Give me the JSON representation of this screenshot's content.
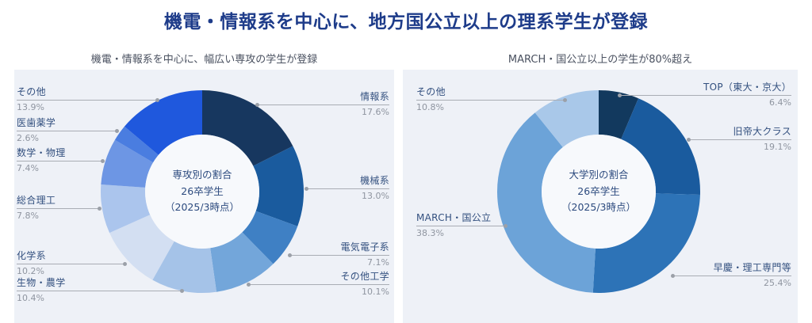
{
  "title": "機電・情報系を中心に、地方国公立以上の理系学生が登録",
  "theme": {
    "title_color": "#1e3c8a",
    "panel_background": "#eef1f7",
    "label_text_color": "#33507f",
    "percent_text_color": "#8f95a0",
    "leader_line_color": "#a9adb4",
    "donut_hole_color": "#f7f9fc"
  },
  "chart_data": [
    {
      "id": "majors",
      "type": "pie",
      "subtype": "donut",
      "title": "機電・情報系を中心に、幅広い専攻の学生が登録",
      "center_lines": [
        "専攻別の割合",
        "26卒学生",
        "（2025/3時点）"
      ],
      "unit": "%",
      "start_angle": "top",
      "direction": "clockwise",
      "legend": "callout-labels",
      "labels": [
        "情報系",
        "機械系",
        "電気電子系",
        "その他工学",
        "生物・農学",
        "化学系",
        "総合理工",
        "数学・物理",
        "医歯薬学",
        "その他"
      ],
      "values": [
        17.6,
        13.0,
        7.1,
        10.1,
        10.4,
        10.2,
        7.8,
        7.4,
        2.6,
        13.9
      ],
      "colors": [
        "#17375f",
        "#1a5b9e",
        "#3f80c4",
        "#73a6da",
        "#a5c3e8",
        "#d3dff2",
        "#abc5ed",
        "#6d96e4",
        "#4a7de0",
        "#1f58dd"
      ]
    },
    {
      "id": "universities",
      "type": "pie",
      "subtype": "donut",
      "title": "MARCH・国公立以上の学生が80%超え",
      "center_lines": [
        "大学別の割合",
        "26卒学生",
        "（2025/3時点）"
      ],
      "unit": "%",
      "start_angle": "top",
      "direction": "clockwise",
      "legend": "callout-labels",
      "labels": [
        "TOP（東大・京大）",
        "旧帝大クラス",
        "早慶・理工専門等",
        "MARCH・国公立",
        "その他"
      ],
      "values": [
        6.4,
        19.1,
        25.4,
        38.3,
        10.8
      ],
      "colors": [
        "#12395e",
        "#1a5b9e",
        "#2d73b7",
        "#6ca3d8",
        "#a9c8e9"
      ]
    }
  ]
}
